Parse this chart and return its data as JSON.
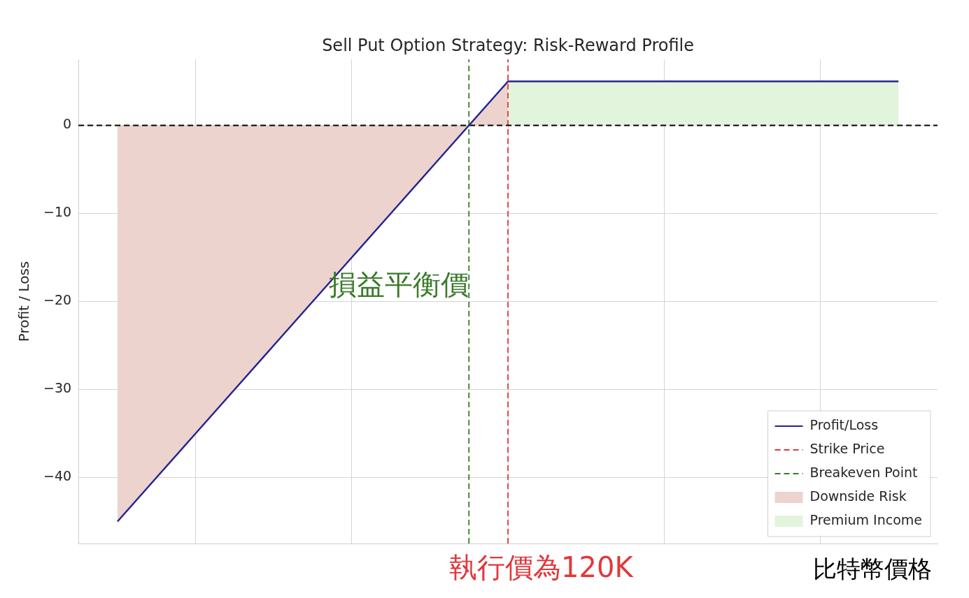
{
  "chart_data": {
    "type": "line",
    "title": "Sell Put Option Strategy: Risk-Reward Profile",
    "xlabel": "比特幣價格",
    "ylabel": "Profit / Loss",
    "categories": [
      null,
      null,
      null,
      null,
      null,
      null,
      null,
      null,
      null,
      null,
      null,
      null,
      null,
      null,
      null,
      null,
      null,
      null,
      null,
      null,
      null
    ],
    "series": [
      {
        "name": "Profit/Loss",
        "color": "#24248f",
        "values": [
          -45,
          -40,
          -35,
          -30,
          -25,
          -20,
          -15,
          -10,
          -5,
          0,
          5,
          5,
          5,
          5,
          5,
          5,
          5,
          5,
          5,
          5,
          5
        ]
      },
      {
        "name": "Downside Risk",
        "type": "area",
        "color": "#ecd3ce",
        "values": [
          -45,
          -40,
          -35,
          -30,
          -25,
          -20,
          -15,
          -10,
          -5,
          0,
          5,
          null,
          null,
          null,
          null,
          null,
          null,
          null,
          null,
          null,
          null
        ]
      },
      {
        "name": "Premium Income",
        "type": "area",
        "color": "#e3f4dc",
        "values": [
          null,
          null,
          null,
          null,
          null,
          null,
          null,
          null,
          null,
          null,
          5,
          5,
          5,
          5,
          5,
          5,
          5,
          5,
          5,
          5,
          5
        ]
      }
    ],
    "ref_lines": [
      {
        "axis": "y",
        "value": 0,
        "color": "#000000",
        "line_style": "dashed"
      },
      {
        "axis": "x",
        "label": "Strike Price",
        "color": "#e0383c",
        "line_style": "dashed"
      },
      {
        "axis": "x",
        "label": "Breakeven Point",
        "color": "#3a7a2a",
        "line_style": "dashed"
      }
    ],
    "annotations": [
      "損益平衡價",
      "執行價為120K"
    ],
    "ylim": [
      -47.5,
      7.5
    ],
    "yticks": [
      {
        "value": -40,
        "label": "−40"
      },
      {
        "value": -30,
        "label": "−30"
      },
      {
        "value": -20,
        "label": "−20"
      },
      {
        "value": -10,
        "label": "−10"
      },
      {
        "value": 0,
        "label": "0"
      }
    ],
    "tick_labels": "y",
    "grid": true,
    "legend": "bottom right"
  }
}
